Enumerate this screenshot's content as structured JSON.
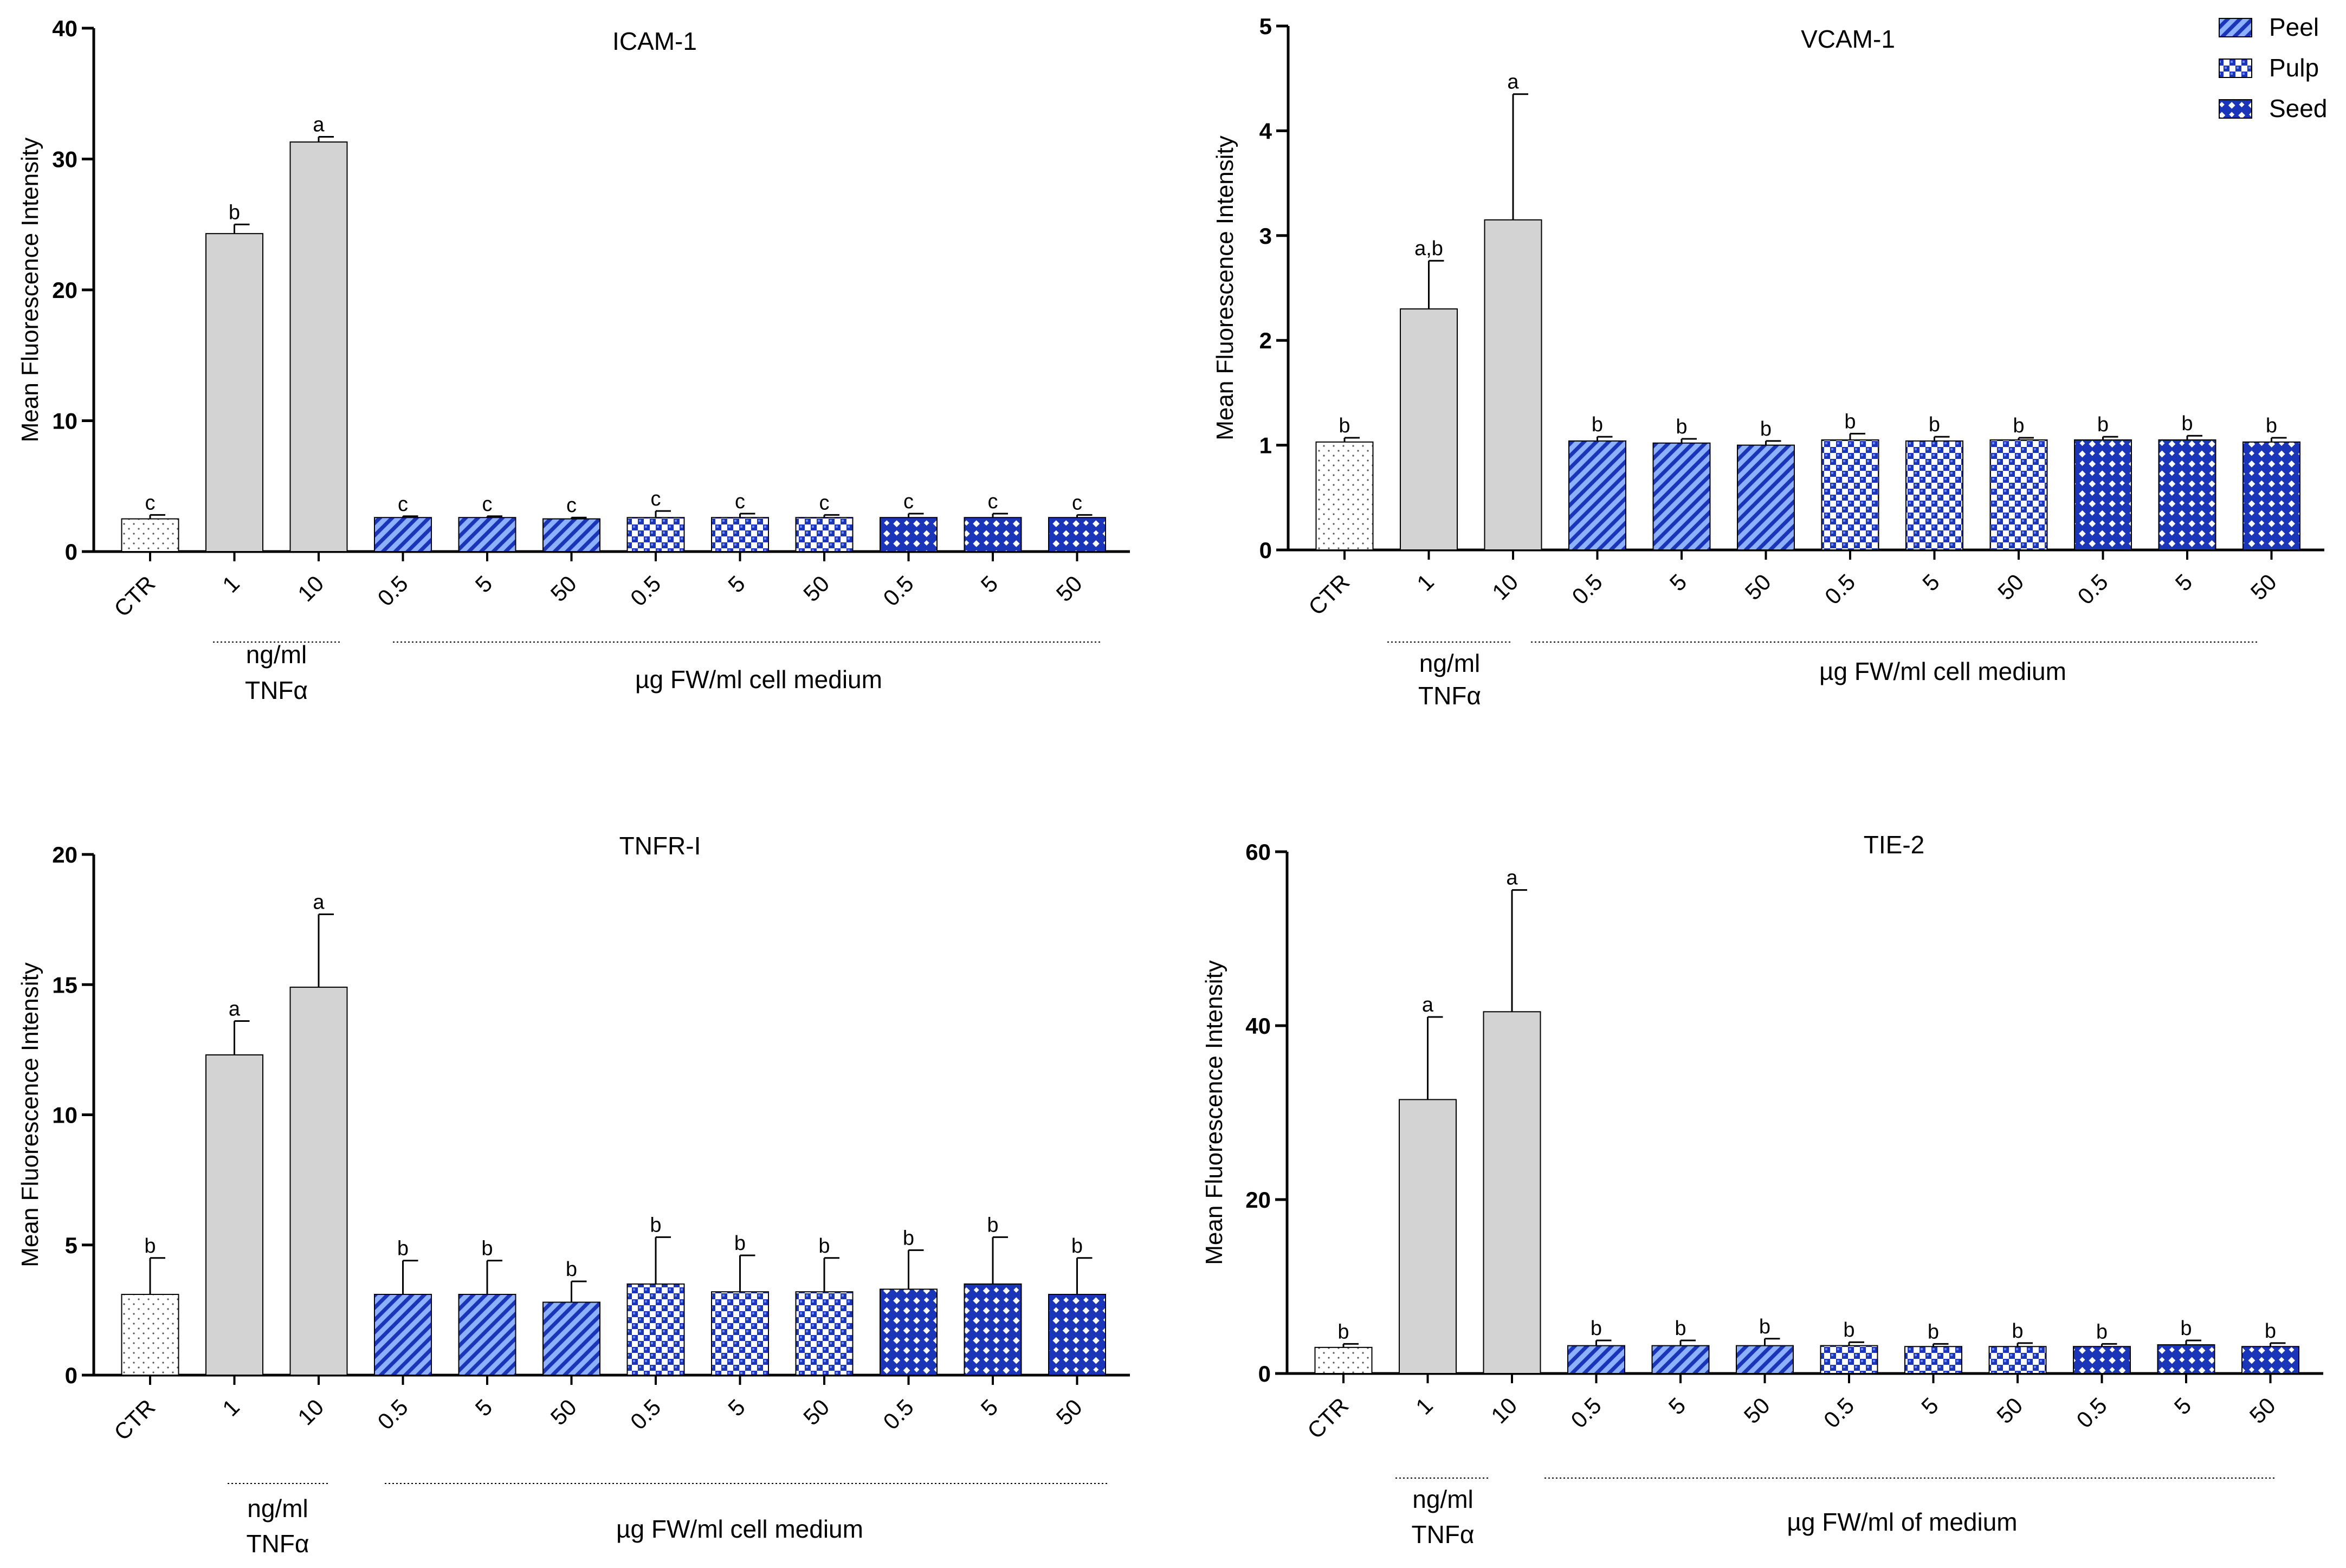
{
  "figure": {
    "legend": [
      {
        "name": "Peel",
        "pattern": "peel"
      },
      {
        "name": "Pulp",
        "pattern": "pulp"
      },
      {
        "name": "Seed",
        "pattern": "seed"
      }
    ],
    "colors": {
      "control_fill": "#ffffff",
      "tnf_fill": "#d3d3d3",
      "extract_blue": "#1a35b8",
      "axis": "#000000"
    }
  },
  "chart_data": [
    {
      "type": "bar",
      "title": "ICAM-1",
      "ylabel": "Mean Fluorescence Intensity",
      "ylim": [
        0,
        40
      ],
      "yticks": [
        0,
        10,
        20,
        30,
        40
      ],
      "categories": [
        "CTR",
        "1",
        "10",
        "0.5",
        "5",
        "50",
        "0.5",
        "5",
        "50",
        "0.5",
        "5",
        "50"
      ],
      "groups": [
        "control",
        "tnf",
        "tnf",
        "peel",
        "peel",
        "peel",
        "pulp",
        "pulp",
        "pulp",
        "seed",
        "seed",
        "seed"
      ],
      "values": [
        2.5,
        24.3,
        31.3,
        2.6,
        2.6,
        2.5,
        2.6,
        2.6,
        2.6,
        2.6,
        2.6,
        2.6
      ],
      "errors": [
        0.3,
        0.7,
        0.4,
        0.1,
        0.1,
        0.1,
        0.5,
        0.3,
        0.2,
        0.3,
        0.3,
        0.2
      ],
      "letters": [
        "c",
        "b",
        "a",
        "c",
        "c",
        "c",
        "c",
        "c",
        "c",
        "c",
        "c",
        "c"
      ],
      "xgroup_labels": [
        {
          "lines": [
            "ng/ml",
            "TNFα"
          ],
          "from": 1,
          "to": 2
        },
        {
          "lines": [
            "µg FW/ml cell medium"
          ],
          "from": 3,
          "to": 11
        }
      ]
    },
    {
      "type": "bar",
      "title": "VCAM-1",
      "ylabel": "Mean Fluorescence Intensity",
      "ylim": [
        0,
        5
      ],
      "yticks": [
        0,
        1,
        2,
        3,
        4,
        5
      ],
      "categories": [
        "CTR",
        "1",
        "10",
        "0.5",
        "5",
        "50",
        "0.5",
        "5",
        "50",
        "0.5",
        "5",
        "50"
      ],
      "groups": [
        "control",
        "tnf",
        "tnf",
        "peel",
        "peel",
        "peel",
        "pulp",
        "pulp",
        "pulp",
        "seed",
        "seed",
        "seed"
      ],
      "values": [
        1.03,
        2.3,
        3.15,
        1.04,
        1.02,
        1.0,
        1.05,
        1.04,
        1.05,
        1.05,
        1.05,
        1.03
      ],
      "errors": [
        0.04,
        0.46,
        1.2,
        0.04,
        0.04,
        0.04,
        0.06,
        0.04,
        0.02,
        0.03,
        0.04,
        0.04
      ],
      "letters": [
        "b",
        "a,b",
        "a",
        "b",
        "b",
        "b",
        "b",
        "b",
        "b",
        "b",
        "b",
        "b"
      ],
      "xgroup_labels": [
        {
          "lines": [
            "ng/ml",
            "TNFα"
          ],
          "from": 1,
          "to": 2
        },
        {
          "lines": [
            "µg FW/ml cell medium"
          ],
          "from": 3,
          "to": 11
        }
      ]
    },
    {
      "type": "bar",
      "title": "TNFR-I",
      "ylabel": "Mean Fluorescence Intensity",
      "ylim": [
        0,
        20
      ],
      "yticks": [
        0,
        5,
        10,
        15,
        20
      ],
      "categories": [
        "CTR",
        "1",
        "10",
        "0.5",
        "5",
        "50",
        "0.5",
        "5",
        "50",
        "0.5",
        "5",
        "50"
      ],
      "groups": [
        "control",
        "tnf",
        "tnf",
        "peel",
        "peel",
        "peel",
        "pulp",
        "pulp",
        "pulp",
        "seed",
        "seed",
        "seed"
      ],
      "values": [
        3.1,
        12.3,
        14.9,
        3.1,
        3.1,
        2.8,
        3.5,
        3.2,
        3.2,
        3.3,
        3.5,
        3.1
      ],
      "errors": [
        1.4,
        1.3,
        2.8,
        1.3,
        1.3,
        0.8,
        1.8,
        1.4,
        1.3,
        1.5,
        1.8,
        1.4
      ],
      "letters": [
        "b",
        "a",
        "a",
        "b",
        "b",
        "b",
        "b",
        "b",
        "b",
        "b",
        "b",
        "b"
      ],
      "xgroup_labels": [
        {
          "lines": [
            "ng/ml",
            "TNFα"
          ],
          "from": 1,
          "to": 2
        },
        {
          "lines": [
            "µg FW/ml cell medium"
          ],
          "from": 3,
          "to": 11
        }
      ]
    },
    {
      "type": "bar",
      "title": "TIE-2",
      "ylabel": "Mean Fluorescence Intensity",
      "ylim": [
        0,
        60
      ],
      "yticks": [
        0,
        20,
        40,
        60
      ],
      "categories": [
        "CTR",
        "1",
        "10",
        "0.5",
        "5",
        "50",
        "0.5",
        "5",
        "50",
        "0.5",
        "5",
        "50"
      ],
      "groups": [
        "control",
        "tnf",
        "tnf",
        "peel",
        "peel",
        "peel",
        "pulp",
        "pulp",
        "pulp",
        "seed",
        "seed",
        "seed"
      ],
      "values": [
        3.0,
        31.5,
        41.6,
        3.2,
        3.2,
        3.2,
        3.2,
        3.1,
        3.1,
        3.1,
        3.3,
        3.1
      ],
      "errors": [
        0.4,
        9.5,
        14.0,
        0.6,
        0.6,
        0.8,
        0.4,
        0.3,
        0.4,
        0.3,
        0.5,
        0.4
      ],
      "letters": [
        "b",
        "a",
        "a",
        "b",
        "b",
        "b",
        "b",
        "b",
        "b",
        "b",
        "b",
        "b"
      ],
      "xgroup_labels": [
        {
          "lines": [
            "ng/ml",
            "TNFα"
          ],
          "from": 1,
          "to": 2
        },
        {
          "lines": [
            "µg FW/ml of medium"
          ],
          "from": 3,
          "to": 11
        }
      ]
    }
  ]
}
